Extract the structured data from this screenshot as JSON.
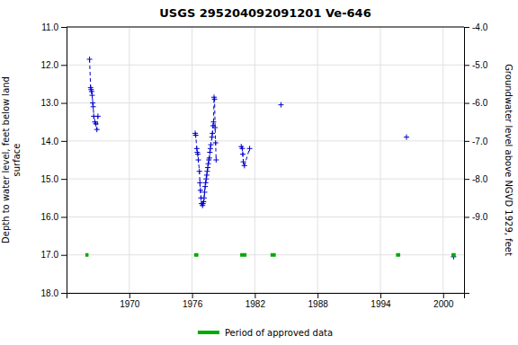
{
  "chart_data": {
    "type": "line",
    "title": "USGS 295204092091201 Ve-646",
    "ylabel": "Depth to water level, feet below land\nsurface",
    "y2label": "Groundwater level above NGVD 1929, feet",
    "xlim": [
      1964,
      2002
    ],
    "xticks": [
      1970,
      1976,
      1982,
      1988,
      1994,
      2000
    ],
    "ylim": [
      18.0,
      11.0
    ],
    "yticks": [
      {
        "value": 11.0,
        "label": "11.0"
      },
      {
        "value": 12.0,
        "label": "12.0"
      },
      {
        "value": 13.0,
        "label": "13.0"
      },
      {
        "value": 14.0,
        "label": "14.0"
      },
      {
        "value": 15.0,
        "label": "15.0"
      },
      {
        "value": 16.0,
        "label": "16.0"
      },
      {
        "value": 17.0,
        "label": "17.0"
      },
      {
        "value": 18.0,
        "label": "18.0"
      }
    ],
    "y2lim": [
      -11.0,
      -4.0
    ],
    "y2ticks": [
      {
        "value": -4.0,
        "label": "-4.0"
      },
      {
        "value": -5.0,
        "label": "-5.0"
      },
      {
        "value": -6.0,
        "label": "-6.0"
      },
      {
        "value": -7.0,
        "label": "-7.0"
      },
      {
        "value": -8.0,
        "label": "-8.0"
      },
      {
        "value": -9.0,
        "label": "-9.0"
      }
    ],
    "grid": true,
    "legend": "bottom",
    "series": [
      {
        "type": "line",
        "color": "#0000cc",
        "line_style": "dashed",
        "marker": "plus",
        "x": [
          1966.2,
          1966.3,
          1966.35,
          1966.4,
          1966.45,
          1966.5,
          1966.55,
          1966.6,
          1966.7,
          1966.8,
          1966.9,
          1967.0,
          null,
          1976.3,
          1976.35,
          1976.45,
          1976.5,
          1976.55,
          1976.6,
          1976.7,
          1976.75,
          1976.8,
          1976.85,
          1976.9,
          1977.0,
          1977.05,
          1977.1,
          1977.15,
          1977.2,
          1977.25,
          1977.3,
          1977.35,
          1977.4,
          1977.45,
          1977.5,
          1977.55,
          1977.6,
          1977.65,
          1977.7,
          1977.75,
          1977.8,
          1977.9,
          1977.95,
          1978.0,
          1978.05,
          1978.1,
          1978.15,
          1978.2,
          1978.25,
          1978.3,
          null,
          1980.7,
          1980.8,
          1980.85,
          1980.9,
          1981.0,
          1981.5,
          null,
          1984.5,
          null,
          1996.5,
          null,
          2001.0
        ],
        "values": [
          11.85,
          12.6,
          12.65,
          12.7,
          12.8,
          13.0,
          13.1,
          13.35,
          13.5,
          13.55,
          13.7,
          13.35,
          null,
          13.8,
          13.85,
          14.2,
          14.3,
          14.35,
          14.5,
          14.8,
          15.1,
          15.3,
          15.5,
          15.65,
          15.7,
          15.65,
          15.6,
          15.5,
          15.35,
          15.2,
          15.1,
          15.0,
          14.9,
          14.8,
          14.7,
          14.6,
          14.5,
          14.45,
          14.3,
          14.2,
          14.1,
          13.9,
          13.8,
          13.6,
          13.5,
          12.85,
          12.9,
          13.65,
          14.05,
          14.5,
          null,
          14.15,
          14.2,
          14.35,
          14.55,
          14.65,
          14.2,
          null,
          13.05,
          null,
          13.9,
          null,
          17.05
        ]
      },
      {
        "type": "line",
        "name": "Period of approved data",
        "color": "#00aa00",
        "line_style": "solid",
        "x": [
          1965.8,
          1966.1,
          null,
          1976.2,
          1976.6,
          null,
          1980.6,
          1981.2,
          null,
          1983.5,
          1984.0,
          null,
          1995.5,
          1995.9,
          null,
          2000.8,
          2001.2
        ],
        "values": [
          17.0,
          17.0,
          null,
          17.0,
          17.0,
          null,
          17.0,
          17.0,
          null,
          17.0,
          17.0,
          null,
          17.0,
          17.0,
          null,
          17.0,
          17.0
        ]
      }
    ]
  }
}
